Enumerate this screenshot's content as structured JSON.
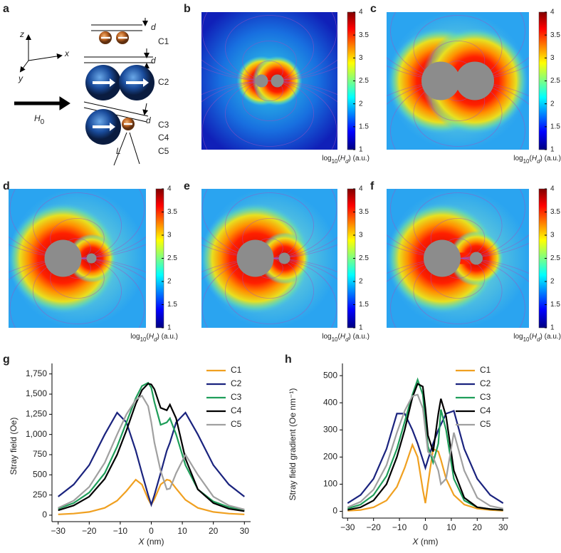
{
  "panels": {
    "letters": [
      "a",
      "b",
      "c",
      "d",
      "e",
      "f",
      "g",
      "h"
    ]
  },
  "schematic": {
    "axes": [
      "z",
      "x",
      "y"
    ],
    "field": "H",
    "field_sub": "0",
    "d": "d",
    "configs": [
      "C1",
      "C2",
      "C3",
      "C4",
      "C5"
    ],
    "L": "L"
  },
  "colorbar": {
    "lim": [
      1,
      4
    ],
    "ticks": [
      1,
      1.5,
      2,
      2.5,
      3,
      3.5,
      4
    ],
    "label_parts": [
      "log",
      "10",
      "(",
      "H",
      "d",
      ") (a.u.)"
    ]
  },
  "chart_data": [
    {
      "type": "line",
      "ylabel": "Stray field (Oe)",
      "xlabel_var": "X",
      "xlabel_unit": " (nm)",
      "x": [
        -30,
        -25,
        -20,
        -15,
        -11,
        -8,
        -5,
        -3,
        -1,
        0,
        1,
        3,
        5,
        6,
        8,
        11,
        15,
        20,
        25,
        30
      ],
      "xlim": [
        -32,
        32
      ],
      "xticks": [
        {
          "value": -30,
          "label": "−30"
        },
        {
          "value": -20,
          "label": "−20"
        },
        {
          "value": -10,
          "label": "−10"
        },
        0,
        10,
        20,
        30
      ],
      "ylim": [
        -80,
        1880
      ],
      "yticks": [
        0,
        250,
        500,
        750,
        {
          "value": 1000,
          "label": "1,000"
        },
        {
          "value": 1250,
          "label": "1,250"
        },
        {
          "value": 1500,
          "label": "1,500"
        },
        {
          "value": 1750,
          "label": "1,750"
        }
      ],
      "series": [
        {
          "name": "C1",
          "color": "#f0a020",
          "values": [
            10,
            20,
            40,
            90,
            180,
            300,
            440,
            380,
            200,
            130,
            200,
            380,
            440,
            430,
            330,
            190,
            90,
            40,
            20,
            10
          ]
        },
        {
          "name": "C2",
          "color": "#1a237e",
          "values": [
            230,
            380,
            620,
            1000,
            1270,
            1150,
            800,
            520,
            250,
            130,
            250,
            520,
            800,
            900,
            1150,
            1270,
            1000,
            620,
            380,
            230
          ]
        },
        {
          "name": "C3",
          "color": "#1f9e5a",
          "values": [
            80,
            150,
            280,
            520,
            850,
            1150,
            1450,
            1600,
            1640,
            1580,
            1400,
            1120,
            1150,
            1200,
            1000,
            620,
            320,
            170,
            100,
            60
          ]
        },
        {
          "name": "C4",
          "color": "#000000",
          "values": [
            60,
            120,
            230,
            450,
            750,
            1050,
            1380,
            1550,
            1630,
            1620,
            1560,
            1330,
            1300,
            1370,
            1200,
            700,
            320,
            150,
            80,
            50
          ]
        },
        {
          "name": "C5",
          "color": "#a0a0a0",
          "values": [
            90,
            180,
            350,
            650,
            1000,
            1250,
            1430,
            1480,
            1350,
            1150,
            900,
            550,
            320,
            330,
            520,
            750,
            500,
            230,
            120,
            70
          ]
        }
      ]
    },
    {
      "type": "line",
      "ylabel": "Stray field gradient (Oe nm⁻¹)",
      "xlabel_var": "X",
      "xlabel_unit": " (nm)",
      "x": [
        -30,
        -25,
        -20,
        -15,
        -11,
        -8,
        -5,
        -3,
        -1,
        0,
        1,
        3,
        5,
        6,
        8,
        11,
        15,
        20,
        25,
        30
      ],
      "xlim": [
        -32,
        32
      ],
      "xticks": [
        {
          "value": -30,
          "label": "−30"
        },
        {
          "value": -20,
          "label": "−20"
        },
        {
          "value": -10,
          "label": "−10"
        },
        0,
        10,
        20,
        30
      ],
      "ylim": [
        -25,
        545
      ],
      "yticks": [
        0,
        100,
        200,
        300,
        400,
        500
      ],
      "series": [
        {
          "name": "C1",
          "color": "#f0a020",
          "values": [
            2,
            5,
            15,
            40,
            90,
            160,
            245,
            200,
            80,
            30,
            100,
            230,
            220,
            190,
            120,
            60,
            25,
            10,
            5,
            2
          ]
        },
        {
          "name": "C2",
          "color": "#1a237e",
          "values": [
            30,
            60,
            120,
            230,
            360,
            360,
            300,
            250,
            190,
            160,
            190,
            250,
            300,
            320,
            360,
            370,
            230,
            120,
            60,
            30
          ]
        },
        {
          "name": "C3",
          "color": "#1f9e5a",
          "values": [
            10,
            25,
            60,
            130,
            230,
            330,
            430,
            485,
            430,
            330,
            240,
            180,
            250,
            375,
            300,
            120,
            40,
            15,
            8,
            5
          ]
        },
        {
          "name": "C4",
          "color": "#000000",
          "values": [
            5,
            15,
            40,
            100,
            200,
            300,
            420,
            470,
            460,
            380,
            280,
            220,
            360,
            415,
            350,
            150,
            50,
            15,
            8,
            5
          ]
        },
        {
          "name": "C5",
          "color": "#a0a0a0",
          "values": [
            15,
            35,
            80,
            170,
            290,
            370,
            425,
            430,
            380,
            300,
            220,
            200,
            150,
            100,
            120,
            290,
            150,
            50,
            20,
            10
          ]
        }
      ]
    }
  ]
}
